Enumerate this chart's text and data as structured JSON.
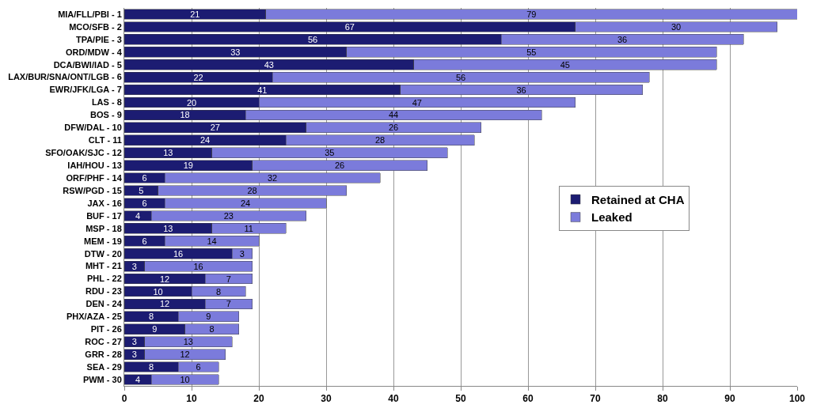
{
  "chart_data": {
    "type": "bar",
    "orientation": "horizontal",
    "stacked": true,
    "data_labels": true,
    "grid": "x",
    "legend": "right",
    "xlim": [
      0,
      100
    ],
    "xticks": [
      0,
      10,
      20,
      30,
      40,
      50,
      60,
      70,
      80,
      90,
      100
    ],
    "categories": [
      "MIA/FLL/PBI - 1",
      "MCO/SFB - 2",
      "TPA/PIE - 3",
      "ORD/MDW - 4",
      "DCA/BWI/IAD - 5",
      "LAX/BUR/SNA/ONT/LGB - 6",
      "EWR/JFK/LGA - 7",
      "LAS - 8",
      "BOS - 9",
      "DFW/DAL - 10",
      "CLT - 11",
      "SFO/OAK/SJC - 12",
      "IAH/HOU - 13",
      "ORF/PHF - 14",
      "RSW/PGD - 15",
      "JAX - 16",
      "BUF - 17",
      "MSP - 18",
      "MEM - 19",
      "DTW - 20",
      "MHT - 21",
      "PHL - 22",
      "RDU - 23",
      "DEN - 24",
      "PHX/AZA - 25",
      "PIT - 26",
      "ROC - 27",
      "GRR - 28",
      "SEA - 29",
      "PWM - 30"
    ],
    "series": [
      {
        "name": "Retained at CHA",
        "color": "#1c1c72",
        "values": [
          21,
          67,
          56,
          33,
          43,
          22,
          41,
          20,
          18,
          27,
          24,
          13,
          19,
          6,
          5,
          6,
          4,
          13,
          6,
          16,
          3,
          12,
          10,
          12,
          8,
          9,
          3,
          3,
          8,
          4
        ]
      },
      {
        "name": "Leaked",
        "color": "#7b7bdb",
        "values": [
          79,
          30,
          36,
          55,
          45,
          56,
          36,
          47,
          44,
          26,
          28,
          35,
          26,
          32,
          28,
          24,
          23,
          11,
          14,
          3,
          16,
          7,
          8,
          7,
          9,
          8,
          13,
          12,
          6,
          10
        ]
      }
    ]
  }
}
